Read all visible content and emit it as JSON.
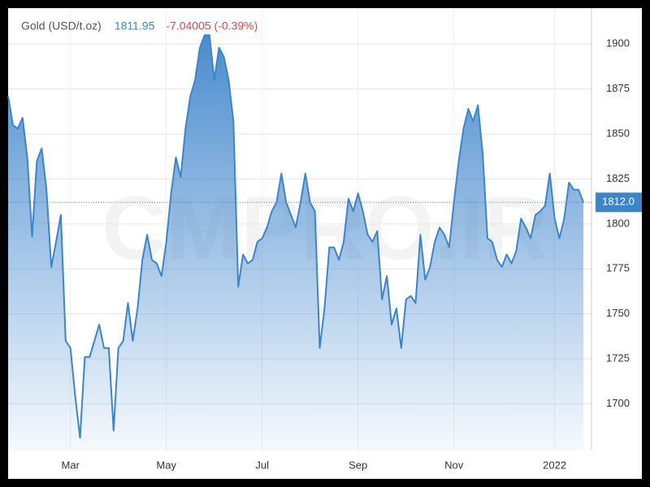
{
  "chart_data": {
    "type": "area",
    "title": "Gold (USD/t.oz)",
    "price": 1811.95,
    "change": "-7.04005 (-0.39%)",
    "watermark": "CMPRO.IR",
    "price_marker": {
      "value": 1812,
      "label": "1812.0"
    },
    "color": "#3d85c6",
    "grid": true,
    "ylim": [
      1674,
      1920
    ],
    "yticks": [
      1700,
      1725,
      1750,
      1775,
      1800,
      1825,
      1850,
      1875,
      1900
    ],
    "categories": [
      null,
      null,
      null,
      null,
      null,
      null,
      null,
      null,
      null,
      null,
      null,
      null,
      null,
      "Mar",
      null,
      null,
      null,
      null,
      null,
      null,
      null,
      null,
      null,
      null,
      null,
      null,
      null,
      null,
      null,
      null,
      null,
      null,
      null,
      "May",
      null,
      null,
      null,
      null,
      null,
      null,
      null,
      null,
      null,
      null,
      null,
      null,
      null,
      null,
      null,
      null,
      null,
      null,
      null,
      "Jul",
      null,
      null,
      null,
      null,
      null,
      null,
      null,
      null,
      null,
      null,
      null,
      null,
      null,
      null,
      null,
      null,
      null,
      null,
      null,
      "Sep",
      null,
      null,
      null,
      null,
      null,
      null,
      null,
      null,
      null,
      null,
      null,
      null,
      null,
      null,
      null,
      null,
      null,
      null,
      null,
      "Nov",
      null,
      null,
      null,
      null,
      null,
      null,
      null,
      null,
      null,
      null,
      null,
      null,
      null,
      null,
      null,
      null,
      null,
      null,
      null,
      null,
      "2022",
      null,
      null,
      null,
      null,
      null,
      null
    ],
    "values": [
      1871,
      1855,
      1853,
      1859,
      1837,
      1793,
      1835,
      1842,
      1819,
      1776,
      1790,
      1805,
      1735,
      1731,
      1704,
      1681,
      1726,
      1726,
      1735,
      1744,
      1731,
      1731,
      1685,
      1731,
      1735,
      1756,
      1735,
      1753,
      1780,
      1794,
      1780,
      1778,
      1771,
      1790,
      1817,
      1837,
      1826,
      1853,
      1871,
      1880,
      1898,
      1905,
      1905,
      1880,
      1898,
      1893,
      1880,
      1857,
      1765,
      1783,
      1778,
      1780,
      1790,
      1792,
      1798,
      1807,
      1812,
      1828,
      1812,
      1805,
      1798,
      1812,
      1828,
      1812,
      1807,
      1731,
      1753,
      1787,
      1787,
      1780,
      1790,
      1814,
      1807,
      1817,
      1807,
      1794,
      1790,
      1796,
      1758,
      1771,
      1744,
      1753,
      1731,
      1758,
      1760,
      1756,
      1794,
      1769,
      1776,
      1790,
      1798,
      1794,
      1787,
      1812,
      1835,
      1853,
      1864,
      1857,
      1866,
      1839,
      1792,
      1790,
      1780,
      1776,
      1783,
      1778,
      1785,
      1803,
      1798,
      1792,
      1805,
      1807,
      1810,
      1828,
      1803,
      1792,
      1803,
      1823,
      1819,
      1819,
      1812
    ]
  }
}
